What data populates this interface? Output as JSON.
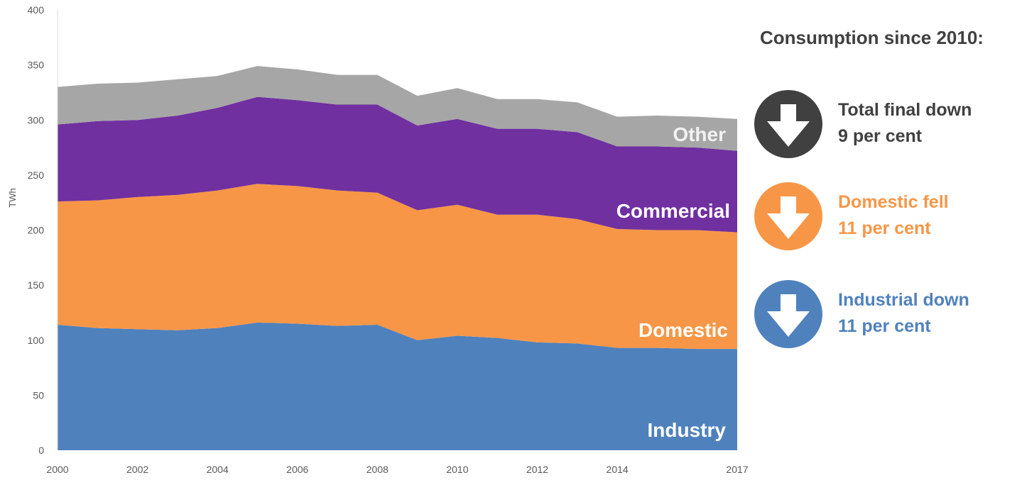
{
  "chart_data": {
    "type": "area",
    "stacked": true,
    "ylabel": "TWh",
    "ylim": [
      0,
      400
    ],
    "yticks": [
      0,
      50,
      100,
      150,
      200,
      250,
      300,
      350,
      400
    ],
    "x": [
      2000,
      2001,
      2002,
      2003,
      2004,
      2005,
      2006,
      2007,
      2008,
      2009,
      2010,
      2011,
      2012,
      2013,
      2014,
      2015,
      2016,
      2017
    ],
    "xticks": [
      2000,
      2002,
      2004,
      2006,
      2008,
      2010,
      2012,
      2014,
      2017
    ],
    "xlim": [
      2000,
      2017
    ],
    "grid": false,
    "series": [
      {
        "name": "Industry",
        "color": "#4F81BD",
        "values": [
          114,
          111,
          110,
          109,
          111,
          116,
          115,
          113,
          114,
          100,
          104,
          102,
          98,
          97,
          93,
          93,
          92,
          92
        ]
      },
      {
        "name": "Domestic",
        "color": "#F79646",
        "values": [
          112,
          116,
          120,
          123,
          125,
          126,
          125,
          123,
          120,
          118,
          119,
          112,
          116,
          113,
          108,
          107,
          108,
          106
        ]
      },
      {
        "name": "Commercial",
        "color": "#7030A0",
        "values": [
          70,
          72,
          70,
          72,
          75,
          79,
          78,
          78,
          80,
          77,
          78,
          78,
          78,
          79,
          75,
          76,
          75,
          74
        ]
      },
      {
        "name": "Other",
        "color": "#A6A6A6",
        "values": [
          34,
          34,
          34,
          33,
          29,
          28,
          28,
          27,
          27,
          27,
          28,
          27,
          27,
          27,
          27,
          28,
          28,
          29
        ]
      }
    ],
    "area_labels": [
      {
        "text": "Other",
        "color": "#F2F2F2"
      },
      {
        "text": "Commercial",
        "color": "#FFFFFF"
      },
      {
        "text": "Domestic",
        "color": "#FFFFFF"
      },
      {
        "text": "Industry",
        "color": "#FFFFFF"
      }
    ]
  },
  "panel": {
    "title": "Consumption since 2010:",
    "callouts": [
      {
        "line1": "Total final down",
        "line2": "9 per cent",
        "color": "#404040",
        "text_color": "#404040",
        "icon": "down-arrow-icon"
      },
      {
        "line1": "Domestic fell",
        "line2": "11 per cent",
        "color": "#F79646",
        "text_color": "#F79646",
        "icon": "down-arrow-icon"
      },
      {
        "line1": "Industrial down",
        "line2": "11 per cent",
        "color": "#4F81BD",
        "text_color": "#4F81BD",
        "icon": "down-arrow-icon"
      }
    ]
  }
}
